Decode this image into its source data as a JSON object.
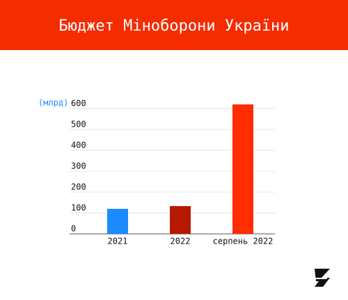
{
  "chart_data": {
    "type": "bar",
    "title": "Бюджет Міноборони України",
    "y_label": "(млрд)",
    "categories": [
      "2021",
      "2022",
      "серпень 2022"
    ],
    "values": [
      120,
      133,
      620
    ],
    "colors": [
      "#1a8cff",
      "#b51a00",
      "#ff2d00"
    ],
    "ylim": [
      0,
      600
    ],
    "yticks": [
      0,
      100,
      200,
      300,
      400,
      500,
      600
    ],
    "grid": true
  }
}
